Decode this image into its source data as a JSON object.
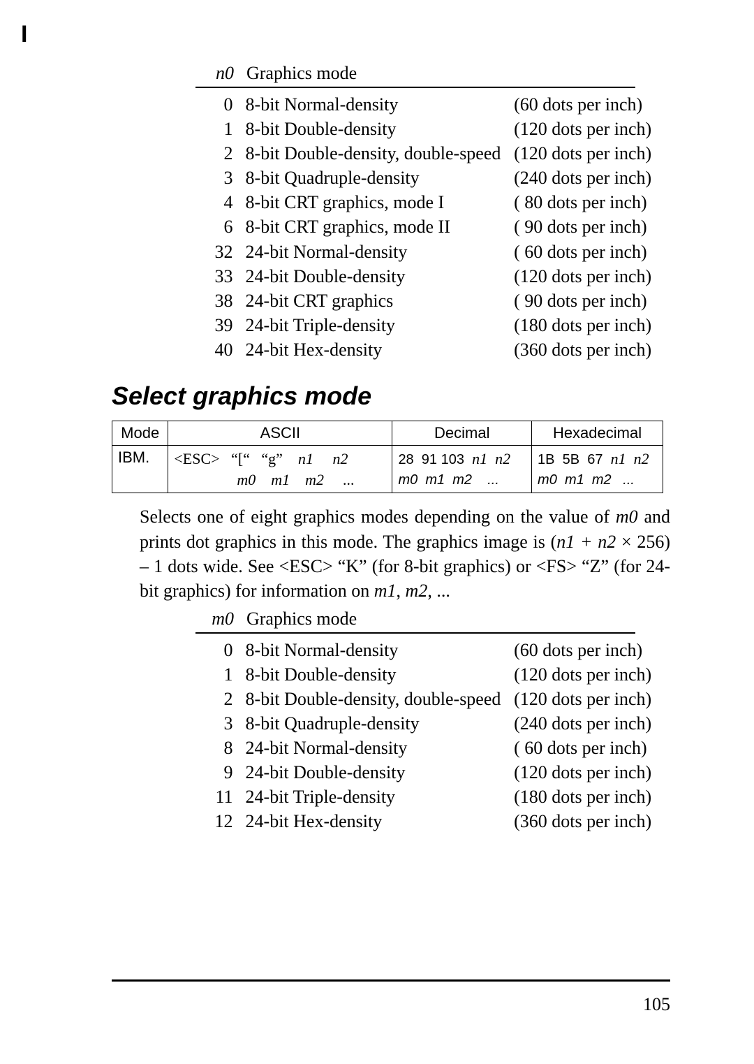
{
  "page_mark": "I",
  "table1": {
    "header_code": "n0",
    "header_desc": "Graphics mode",
    "rows": [
      {
        "code": "0",
        "desc": "8-bit Normal-density",
        "dpi": "(60 dots per inch)"
      },
      {
        "code": "1",
        "desc": "8-bit Double-density",
        "dpi": "(120 dots per inch)"
      },
      {
        "code": "2",
        "desc": "8-bit Double-density, double-speed",
        "dpi": "(120 dots per inch)"
      },
      {
        "code": "3",
        "desc": "8-bit Quadruple-density",
        "dpi": "(240 dots per inch)"
      },
      {
        "code": "4",
        "desc": "8-bit CRT graphics, mode I",
        "dpi": "( 80 dots per inch)"
      },
      {
        "code": "6",
        "desc": "8-bit CRT graphics, mode II",
        "dpi": "( 90 dots per inch)"
      },
      {
        "code": "32",
        "desc": "24-bit Normal-density",
        "dpi": "( 60 dots per inch)"
      },
      {
        "code": "33",
        "desc": "24-bit Double-density",
        "dpi": "(120 dots per inch)"
      },
      {
        "code": "38",
        "desc": "24-bit CRT graphics",
        "dpi": "( 90 dots per inch)"
      },
      {
        "code": "39",
        "desc": "24-bit Triple-density",
        "dpi": "(180 dots per inch)"
      },
      {
        "code": "40",
        "desc": "24-bit Hex-density",
        "dpi": "(360 dots per inch)"
      }
    ]
  },
  "heading": "Select graphics mode",
  "cmd_table": {
    "headers": {
      "mode": "Mode",
      "ascii": "ASCII",
      "dec": "Decimal",
      "hex": "Hexadecimal"
    },
    "mode_cell": "IBM.",
    "ascii_l1_a": "<ESC>   “[“   “g”    ",
    "ascii_l1_b": "n1     n2",
    "ascii_l2": "m0    m1    m2     ...",
    "dec_l1_a": "28  91 103  ",
    "dec_l1_b": "n1  n2",
    "dec_l2": "m0  m1  m2    ...",
    "hex_l1_a": "1B  5B  67  ",
    "hex_l1_b": "n1  n2",
    "hex_l2": "m0  m1  m2   ..."
  },
  "body1a": "Selects one of eight graphics modes depending on the value of ",
  "body1b": "m0",
  "body1c": " and prints dot graphics in this mode. The graphics image is (",
  "body1d": "n1 + n2",
  "body1e": " × 256) – 1 dots wide. See <ESC> “K” (for 8-bit graphics) or <FS> “Z” (for 24-bit graphics) for information on ",
  "body1f": "m1",
  "body1g": ", ",
  "body1h": "m2",
  "body1i": ", ...",
  "table2": {
    "header_code": "m0",
    "header_desc": "Graphics mode",
    "rows": [
      {
        "code": "0",
        "desc": "8-bit Normal-density",
        "dpi": "(60 dots per inch)"
      },
      {
        "code": "1",
        "desc": "8-bit Double-density",
        "dpi": "(120 dots per inch)"
      },
      {
        "code": "2",
        "desc": "8-bit Double-density, double-speed",
        "dpi": "(120 dots per inch)"
      },
      {
        "code": "3",
        "desc": "8-bit Quadruple-density",
        "dpi": "(240 dots per inch)"
      },
      {
        "code": "8",
        "desc": "24-bit Normal-density",
        "dpi": "( 60 dots per inch)"
      },
      {
        "code": "9",
        "desc": "24-bit Double-density",
        "dpi": "(120 dots per inch)"
      },
      {
        "code": "11",
        "desc": "24-bit Triple-density",
        "dpi": "(180 dots per inch)"
      },
      {
        "code": "12",
        "desc": "24-bit Hex-density",
        "dpi": "(360 dots per inch)"
      }
    ]
  },
  "page_number": "105"
}
